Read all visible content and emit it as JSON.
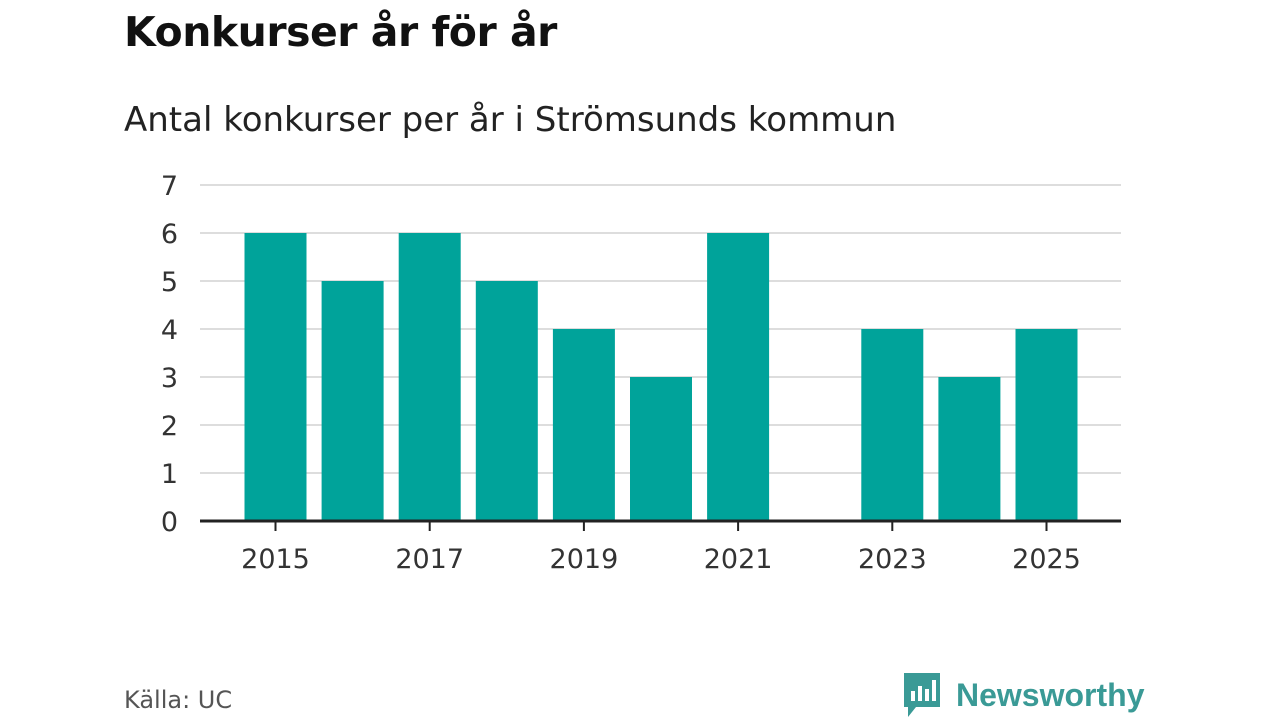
{
  "title": "Konkurser år för år",
  "subtitle": "Antal konkurser per år i Strömsunds kommun",
  "source": "Källa: UC",
  "brand": {
    "name": "Newsworthy",
    "icon": "bar-chart-speech-bubble-icon",
    "color": "#3a9a96"
  },
  "chart_data": {
    "type": "bar",
    "categories": [
      "2015",
      "2016",
      "2017",
      "2018",
      "2019",
      "2020",
      "2021",
      "2022",
      "2023",
      "2024",
      "2025"
    ],
    "values": [
      6,
      5,
      6,
      5,
      4,
      3,
      6,
      0,
      4,
      3,
      4
    ],
    "x_tick_labels": [
      "2015",
      "2017",
      "2019",
      "2021",
      "2023",
      "2025"
    ],
    "y_ticks": [
      0,
      1,
      2,
      3,
      4,
      5,
      6,
      7
    ],
    "ylim": [
      0,
      7
    ],
    "bar_color": "#00a39a",
    "grid": true,
    "xlabel": "",
    "ylabel": ""
  }
}
